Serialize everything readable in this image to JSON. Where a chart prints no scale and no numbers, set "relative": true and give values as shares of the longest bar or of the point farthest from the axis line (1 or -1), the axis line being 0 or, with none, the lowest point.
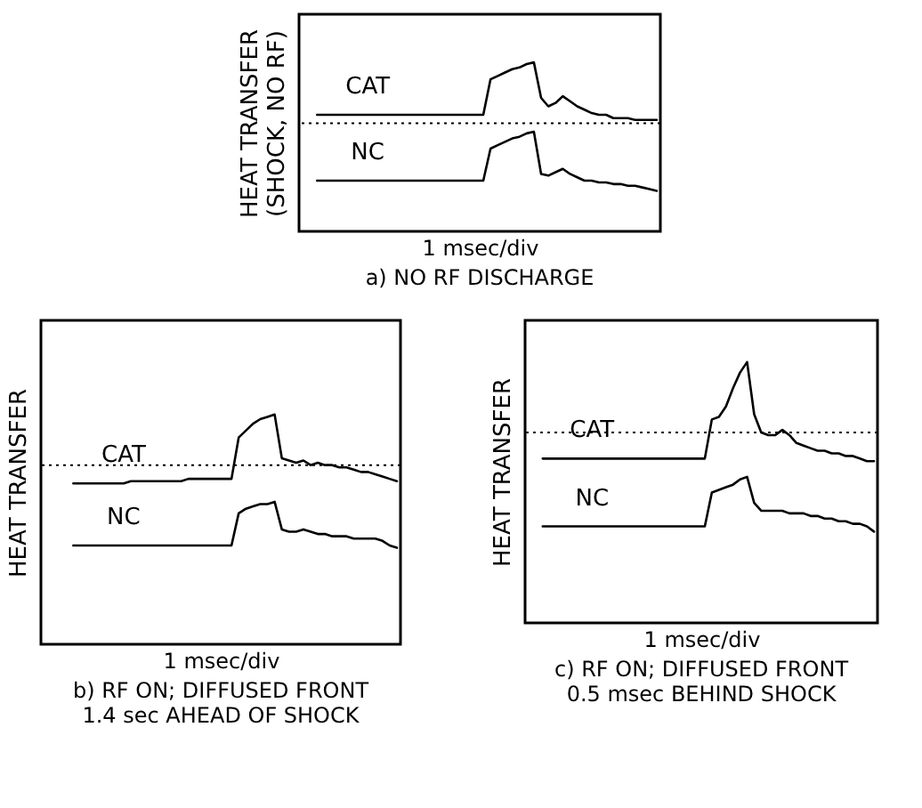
{
  "chart_data": [
    {
      "type": "line",
      "relative": true,
      "title": "a) NO RF DISCHARGE",
      "xlabel": "1 msec/div",
      "ylabel": "HEAT TRANSFER\n(SHOCK, NO RF)",
      "categories": [
        null,
        null,
        null,
        null,
        null,
        null,
        null,
        null,
        null,
        null,
        null,
        null,
        null,
        null,
        null,
        null,
        null,
        null,
        null,
        null,
        null,
        null,
        null,
        null,
        null,
        null,
        null,
        null,
        null,
        null,
        null,
        null,
        null,
        null,
        null,
        null,
        null,
        null,
        null,
        null,
        null,
        null,
        null,
        null,
        null,
        null,
        null,
        null,
        null,
        null
      ],
      "series": [
        {
          "name": "CAT",
          "color": "#000000",
          "values": [
            null,
            null,
            0.69,
            0.69,
            0.69,
            0.69,
            0.69,
            0.69,
            0.69,
            0.69,
            0.69,
            0.69,
            0.69,
            0.69,
            0.69,
            0.69,
            0.69,
            0.69,
            0.69,
            0.69,
            0.69,
            0.69,
            0.69,
            0.69,
            0.69,
            0.69,
            0.9,
            0.92,
            0.94,
            0.96,
            0.97,
            0.99,
            1,
            0.79,
            0.74,
            0.76,
            0.8,
            0.77,
            0.74,
            0.72,
            0.7,
            0.69,
            0.69,
            0.67,
            0.67,
            0.67,
            0.66,
            0.66,
            0.66,
            0.66
          ]
        },
        {
          "name": "NC",
          "color": "#000000",
          "values": [
            null,
            null,
            0.3,
            0.3,
            0.3,
            0.3,
            0.3,
            0.3,
            0.3,
            0.3,
            0.3,
            0.3,
            0.3,
            0.3,
            0.3,
            0.3,
            0.3,
            0.3,
            0.3,
            0.3,
            0.3,
            0.3,
            0.3,
            0.3,
            0.3,
            0.3,
            0.49,
            0.51,
            0.53,
            0.55,
            0.56,
            0.58,
            0.59,
            0.34,
            0.33,
            0.35,
            0.37,
            0.34,
            0.32,
            0.3,
            0.3,
            0.29,
            0.29,
            0.28,
            0.28,
            0.27,
            0.27,
            0.26,
            0.25,
            0.24
          ]
        }
      ],
      "ref_lines": [
        {
          "axis": "y",
          "value": 0.64,
          "line_style": "dotted"
        }
      ]
    },
    {
      "type": "line",
      "relative": true,
      "title": "b) RF ON; DIFFUSED FRONT\n1.4 sec AHEAD OF SHOCK",
      "xlabel": "1 msec/div",
      "ylabel": "HEAT TRANSFER",
      "categories": [
        null,
        null,
        null,
        null,
        null,
        null,
        null,
        null,
        null,
        null,
        null,
        null,
        null,
        null,
        null,
        null,
        null,
        null,
        null,
        null,
        null,
        null,
        null,
        null,
        null,
        null,
        null,
        null,
        null,
        null,
        null,
        null,
        null,
        null,
        null,
        null,
        null,
        null,
        null,
        null,
        null,
        null,
        null,
        null,
        null,
        null,
        null,
        null,
        null,
        null
      ],
      "series": [
        {
          "name": "CAT",
          "color": "#000000",
          "values": [
            null,
            null,
            null,
            null,
            0.7,
            0.7,
            0.7,
            0.7,
            0.7,
            0.7,
            0.7,
            0.7,
            0.71,
            0.71,
            0.71,
            0.71,
            0.71,
            0.71,
            0.71,
            0.71,
            0.72,
            0.72,
            0.72,
            0.72,
            0.72,
            0.72,
            0.72,
            0.9,
            0.93,
            0.96,
            0.98,
            0.99,
            1,
            0.81,
            0.8,
            0.79,
            0.8,
            0.78,
            0.79,
            0.78,
            0.78,
            0.77,
            0.77,
            0.76,
            0.75,
            0.75,
            0.74,
            0.73,
            0.72,
            0.71
          ]
        },
        {
          "name": "NC",
          "color": "#000000",
          "values": [
            null,
            null,
            null,
            null,
            0.43,
            0.43,
            0.43,
            0.43,
            0.43,
            0.43,
            0.43,
            0.43,
            0.43,
            0.43,
            0.43,
            0.43,
            0.43,
            0.43,
            0.43,
            0.43,
            0.43,
            0.43,
            0.43,
            0.43,
            0.43,
            0.43,
            0.43,
            0.57,
            0.59,
            0.6,
            0.61,
            0.61,
            0.62,
            0.5,
            0.49,
            0.49,
            0.5,
            0.49,
            0.48,
            0.48,
            0.47,
            0.47,
            0.47,
            0.46,
            0.46,
            0.46,
            0.46,
            0.45,
            0.43,
            0.42
          ]
        }
      ],
      "ref_lines": [
        {
          "axis": "y",
          "value": 0.78,
          "line_style": "dotted"
        }
      ]
    },
    {
      "type": "line",
      "relative": true,
      "title": "c) RF ON; DIFFUSED FRONT\n0.5 msec BEHIND SHOCK",
      "xlabel": "1 msec/div",
      "ylabel": "HEAT TRANSFER",
      "categories": [
        null,
        null,
        null,
        null,
        null,
        null,
        null,
        null,
        null,
        null,
        null,
        null,
        null,
        null,
        null,
        null,
        null,
        null,
        null,
        null,
        null,
        null,
        null,
        null,
        null,
        null,
        null,
        null,
        null,
        null,
        null,
        null,
        null,
        null,
        null,
        null,
        null,
        null,
        null,
        null,
        null,
        null,
        null,
        null,
        null,
        null,
        null,
        null,
        null,
        null
      ],
      "series": [
        {
          "name": "CAT",
          "color": "#000000",
          "values": [
            null,
            null,
            0.63,
            0.63,
            0.63,
            0.63,
            0.63,
            0.63,
            0.63,
            0.63,
            0.63,
            0.63,
            0.63,
            0.63,
            0.63,
            0.63,
            0.63,
            0.63,
            0.63,
            0.63,
            0.63,
            0.63,
            0.63,
            0.63,
            0.63,
            0.63,
            0.78,
            0.79,
            0.83,
            0.9,
            0.96,
            1,
            0.8,
            0.73,
            0.72,
            0.72,
            0.74,
            0.72,
            0.69,
            0.68,
            0.67,
            0.66,
            0.66,
            0.65,
            0.65,
            0.64,
            0.64,
            0.63,
            0.62,
            0.62
          ]
        },
        {
          "name": "NC",
          "color": "#000000",
          "values": [
            null,
            null,
            0.37,
            0.37,
            0.37,
            0.37,
            0.37,
            0.37,
            0.37,
            0.37,
            0.37,
            0.37,
            0.37,
            0.37,
            0.37,
            0.37,
            0.37,
            0.37,
            0.37,
            0.37,
            0.37,
            0.37,
            0.37,
            0.37,
            0.37,
            0.37,
            0.5,
            0.51,
            0.52,
            0.53,
            0.55,
            0.56,
            0.46,
            0.43,
            0.43,
            0.43,
            0.43,
            0.42,
            0.42,
            0.42,
            0.41,
            0.41,
            0.4,
            0.4,
            0.39,
            0.39,
            0.38,
            0.38,
            0.37,
            0.35
          ]
        }
      ],
      "ref_lines": [
        {
          "axis": "y",
          "value": 0.73,
          "line_style": "dotted"
        }
      ]
    }
  ]
}
